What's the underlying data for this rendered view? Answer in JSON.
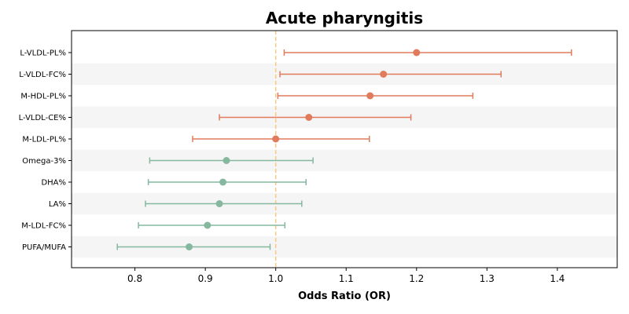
{
  "chart_data": {
    "type": "forest",
    "title": "Acute pharyngitis",
    "xlabel": "Odds Ratio (OR)",
    "xlim": [
      0.71,
      1.485
    ],
    "xticks": [
      0.8,
      0.9,
      1.0,
      1.1,
      1.2,
      1.3,
      1.4
    ],
    "xtick_labels": [
      "0.8",
      "0.9",
      "1.0",
      "1.1",
      "1.2",
      "1.3",
      "1.4"
    ],
    "reference_line": 1.0,
    "colors": {
      "risk": "#e07b5c",
      "protective": "#86b8a0",
      "reference": "#f5c98a",
      "band": "#f5f5f5"
    },
    "rows": [
      {
        "label": "L-VLDL-PL%",
        "or": 1.2,
        "lower": 1.012,
        "upper": 1.42,
        "group": "risk"
      },
      {
        "label": "L-VLDL-FC%",
        "or": 1.153,
        "lower": 1.006,
        "upper": 1.32,
        "group": "risk"
      },
      {
        "label": "M-HDL-PL%",
        "or": 1.134,
        "lower": 1.003,
        "upper": 1.28,
        "group": "risk"
      },
      {
        "label": "L-VLDL-CE%",
        "or": 1.047,
        "lower": 0.92,
        "upper": 1.192,
        "group": "risk"
      },
      {
        "label": "M-LDL-PL%",
        "or": 1.0,
        "lower": 0.882,
        "upper": 1.133,
        "group": "risk"
      },
      {
        "label": "Omega-3%",
        "or": 0.93,
        "lower": 0.821,
        "upper": 1.053,
        "group": "protective"
      },
      {
        "label": "DHA%",
        "or": 0.925,
        "lower": 0.819,
        "upper": 1.043,
        "group": "protective"
      },
      {
        "label": "LA%",
        "or": 0.92,
        "lower": 0.815,
        "upper": 1.037,
        "group": "protective"
      },
      {
        "label": "M-LDL-FC%",
        "or": 0.903,
        "lower": 0.805,
        "upper": 1.013,
        "group": "protective"
      },
      {
        "label": "PUFA/MUFA",
        "or": 0.877,
        "lower": 0.775,
        "upper": 0.992,
        "group": "protective"
      }
    ]
  }
}
